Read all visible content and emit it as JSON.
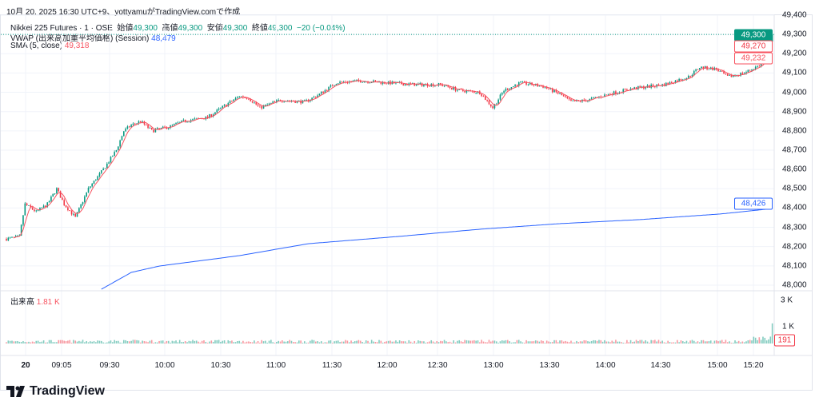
{
  "caption": "10月 20, 2025 16:30 UTC+9、yottyamuがTradingView.comで作成",
  "legend": {
    "symbol": "Nikkei 225 Futures · 1 · OSE",
    "open_label": "始値",
    "open": "49,300",
    "high_label": "高値",
    "high": "49,300",
    "low_label": "安値",
    "low": "49,300",
    "close_label": "終値",
    "close": "49,300",
    "change": "−20 (−0.04%)",
    "vwap_label": "VWAP (出来高加重平均価格) (Session)",
    "vwap_value": "48,479",
    "sma_label": "SMA (5, close)",
    "sma_value": "49,318",
    "volume_label": "出来高",
    "volume_value": "1.81 K"
  },
  "price_axis": [
    "49,400",
    "49,300",
    "49,200",
    "49,100",
    "49,000",
    "48,900",
    "48,800",
    "48,700",
    "48,600",
    "48,500",
    "48,400",
    "48,300",
    "48,200",
    "48,100",
    "48,000"
  ],
  "price_badges": {
    "last": "49,300",
    "sma": "49,270",
    "low": "49,232",
    "vwap": "48,426",
    "volume": "191"
  },
  "volume_axis": [
    "3 K",
    "1 K"
  ],
  "time_axis": [
    "20",
    "09:05",
    "09:30",
    "10:00",
    "10:30",
    "11:00",
    "11:30",
    "12:00",
    "12:30",
    "13:00",
    "13:30",
    "14:00",
    "14:30",
    "15:00",
    "15:20"
  ],
  "brand": "TradingView",
  "colors": {
    "up": "#089981",
    "down": "#f23645",
    "vwap": "#2962ff",
    "sma": "#f7525f"
  },
  "chart_data": {
    "type": "candlestick",
    "start_time": "08:45",
    "interval_minutes": 1,
    "close_keypoints_minute_price": [
      [
        0,
        48240
      ],
      [
        7,
        48250
      ],
      [
        10,
        48420
      ],
      [
        16,
        48380
      ],
      [
        22,
        48420
      ],
      [
        27,
        48500
      ],
      [
        31,
        48420
      ],
      [
        37,
        48350
      ],
      [
        44,
        48500
      ],
      [
        52,
        48600
      ],
      [
        59,
        48700
      ],
      [
        63,
        48800
      ],
      [
        67,
        48830
      ],
      [
        72,
        48850
      ],
      [
        78,
        48800
      ],
      [
        87,
        48820
      ],
      [
        95,
        48850
      ],
      [
        108,
        48870
      ],
      [
        117,
        48930
      ],
      [
        125,
        48980
      ],
      [
        130,
        48970
      ],
      [
        136,
        48920
      ],
      [
        147,
        48960
      ],
      [
        160,
        48950
      ],
      [
        168,
        48990
      ],
      [
        177,
        49050
      ],
      [
        190,
        49060
      ],
      [
        203,
        49050
      ],
      [
        220,
        49040
      ],
      [
        233,
        49040
      ],
      [
        243,
        49010
      ],
      [
        254,
        49000
      ],
      [
        261,
        48920
      ],
      [
        267,
        49010
      ],
      [
        276,
        49050
      ],
      [
        288,
        49030
      ],
      [
        297,
        48990
      ],
      [
        303,
        48950
      ],
      [
        312,
        48960
      ],
      [
        323,
        48990
      ],
      [
        336,
        49020
      ],
      [
        353,
        49040
      ],
      [
        366,
        49080
      ],
      [
        372,
        49130
      ],
      [
        381,
        49120
      ],
      [
        387,
        49080
      ],
      [
        396,
        49100
      ],
      [
        406,
        49150
      ],
      [
        411,
        49300
      ]
    ],
    "vwap_keypoints_minute_price": [
      [
        51,
        47979
      ],
      [
        67,
        48066
      ],
      [
        82,
        48099
      ],
      [
        125,
        48153
      ],
      [
        162,
        48215
      ],
      [
        211,
        48253
      ],
      [
        254,
        48290
      ],
      [
        297,
        48319
      ],
      [
        340,
        48340
      ],
      [
        383,
        48369
      ],
      [
        407,
        48393
      ],
      [
        411,
        48426
      ]
    ],
    "yrange": [
      48000,
      49400
    ]
  }
}
